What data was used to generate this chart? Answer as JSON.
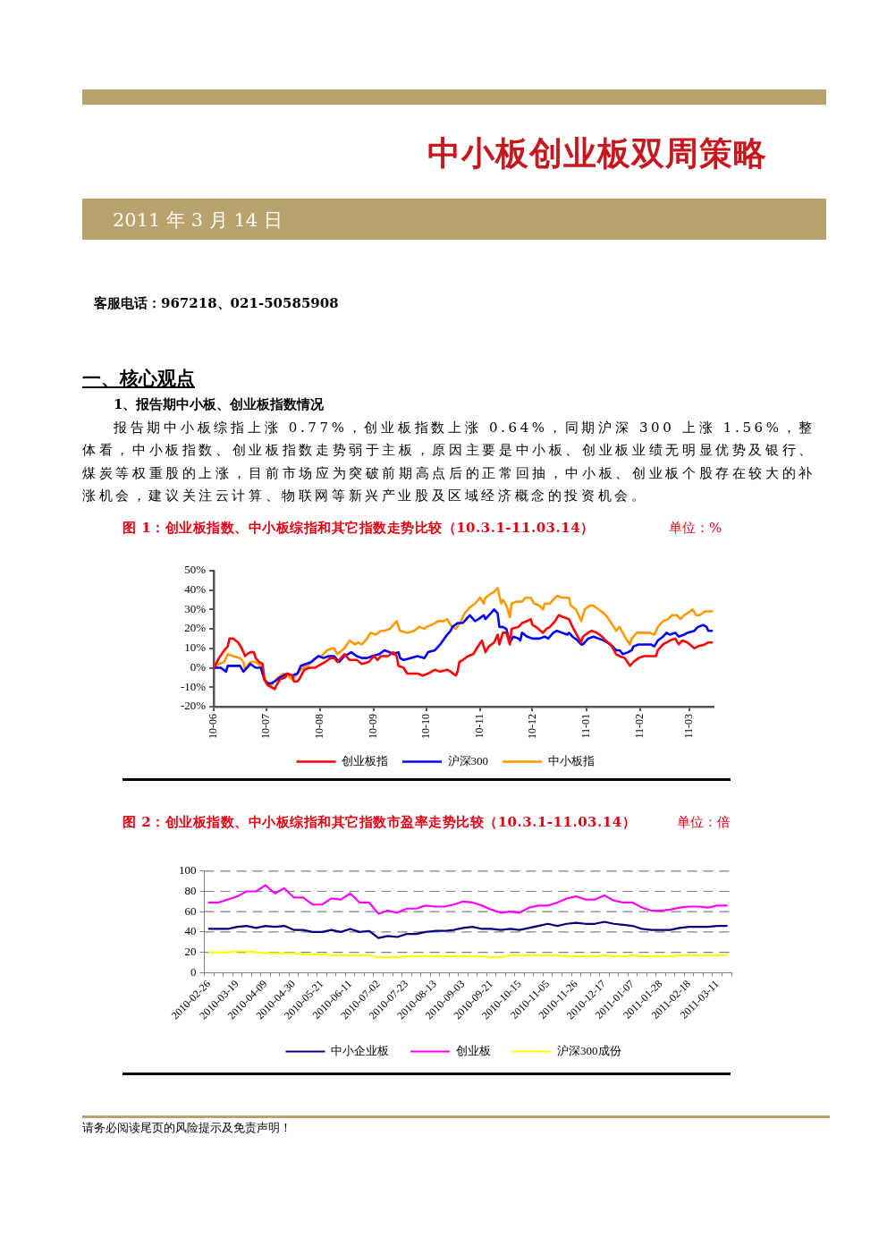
{
  "chart_data": [
    {
      "type": "line",
      "title": "图 1：创业板指数、中小板综指和其它指数走势比较（10.3.1-11.03.14）",
      "subtitle": "单位：%",
      "annotations": [
        "中小板创业板双周策略",
        "2011 年 3 月 14 日",
        "客服电话：967218、021-50585908",
        "一、核心观点",
        "1、报告期中小板、创业板指数情况",
        "报告期中小板综指上涨 0.77%，创业板指数上涨 0.64%，同期沪深 300 上涨 1.56%，整体看，中小板指数、创业板指数走势弱于主板，原因主要是中小板、创业板业绩无明显优势及银行、煤炭等权重股的上涨，目前市场应为突破前期高点后的正常回抽，中小板、创业板个股存在较大的补涨机会，建议关注云计算、物联网等新兴产业股及区域经济概念的投资机会。"
      ],
      "xlim": [
        "2010-06-01",
        "2011-03-15"
      ],
      "xticks": [
        {
          "value": "2010-06",
          "label": "10-06"
        },
        {
          "value": "2010-07",
          "label": "10-07"
        },
        {
          "value": "2010-08",
          "label": "10-08"
        },
        {
          "value": "2010-09",
          "label": "10-09"
        },
        {
          "value": "2010-10",
          "label": "10-10"
        },
        {
          "value": "2010-11",
          "label": "10-11"
        },
        {
          "value": "2010-12",
          "label": "10-12"
        },
        {
          "value": "2011-01",
          "label": "11-01"
        },
        {
          "value": "2011-02",
          "label": "11-02"
        },
        {
          "value": "2011-03",
          "label": "11-03"
        }
      ],
      "ylim": [
        -20,
        50
      ],
      "yticks": [
        {
          "value": -20,
          "label": "-20%"
        },
        {
          "value": -10,
          "label": "-10%"
        },
        {
          "value": 0,
          "label": "0%"
        },
        {
          "value": 10,
          "label": "10%"
        },
        {
          "value": 20,
          "label": "20%"
        },
        {
          "value": 30,
          "label": "30%"
        },
        {
          "value": 40,
          "label": "40%"
        },
        {
          "value": 50,
          "label": "50%"
        }
      ],
      "legend": "bottom",
      "series": [
        {
          "name": "创业板指",
          "color": "#ff0000",
          "x": [
            "2010-06-01",
            "2010-06-04",
            "2010-06-07",
            "2010-06-09",
            "2010-06-10",
            "2010-06-12",
            "2010-06-15",
            "2010-06-17",
            "2010-06-19",
            "2010-06-20",
            "2010-06-22",
            "2010-06-24",
            "2010-06-25",
            "2010-06-27",
            "2010-06-29",
            "2010-06-30",
            "2010-07-02",
            "2010-07-04",
            "2010-07-06",
            "2010-07-07",
            "2010-07-09",
            "2010-07-12",
            "2010-07-13",
            "2010-07-16",
            "2010-07-17",
            "2010-07-19",
            "2010-07-20",
            "2010-07-23",
            "2010-07-26",
            "2010-07-29",
            "2010-08-02",
            "2010-08-04",
            "2010-08-07",
            "2010-08-09",
            "2010-08-11",
            "2010-08-13",
            "2010-08-15",
            "2010-08-18",
            "2010-08-22",
            "2010-08-25",
            "2010-08-29",
            "2010-09-01",
            "2010-09-03",
            "2010-09-05",
            "2010-09-09",
            "2010-09-12",
            "2010-09-14",
            "2010-09-15",
            "2010-09-18",
            "2010-09-20",
            "2010-09-23",
            "2010-09-26",
            "2010-09-29",
            "2010-10-02",
            "2010-10-06",
            "2010-10-09",
            "2010-10-13",
            "2010-10-15",
            "2010-10-18",
            "2010-10-19",
            "2010-10-20",
            "2010-10-22",
            "2010-10-25",
            "2010-10-28",
            "2010-10-30",
            "2010-11-02",
            "2010-11-04",
            "2010-11-06",
            "2010-11-09",
            "2010-11-11",
            "2010-11-12",
            "2010-11-14",
            "2010-11-16",
            "2010-11-18",
            "2010-11-19",
            "2010-11-23",
            "2010-11-25",
            "2010-11-28",
            "2010-11-30",
            "2010-12-01",
            "2010-12-03",
            "2010-12-07",
            "2010-12-09",
            "2010-12-11",
            "2010-12-14",
            "2010-12-16",
            "2010-12-19",
            "2010-12-22",
            "2010-12-24",
            "2010-12-27",
            "2010-12-29",
            "2010-12-30",
            "2011-01-02",
            "2011-01-04",
            "2011-01-07",
            "2011-01-10",
            "2011-01-12",
            "2011-01-15",
            "2011-01-18",
            "2011-01-20",
            "2011-01-23",
            "2011-01-26",
            "2011-01-28",
            "2011-01-31",
            "2011-02-03",
            "2011-02-07",
            "2011-02-10",
            "2011-02-11",
            "2011-02-14",
            "2011-02-18",
            "2011-02-21",
            "2011-02-23",
            "2011-02-25",
            "2011-02-28",
            "2011-03-04",
            "2011-03-06",
            "2011-03-10",
            "2011-03-12",
            "2011-03-14"
          ],
          "values": [
            0,
            5,
            9,
            11,
            15,
            15,
            13,
            10,
            6,
            7,
            8,
            8,
            5,
            3,
            2,
            -6,
            -9,
            -10,
            -11,
            -9,
            -6,
            -5,
            -3,
            -4,
            -7,
            -7,
            -6,
            -1,
            0,
            0,
            2,
            3,
            5,
            5,
            3,
            5,
            7,
            4,
            4,
            2,
            3,
            6,
            4,
            6,
            6,
            8,
            6,
            1,
            0,
            -3,
            -3,
            -3,
            -4,
            -3,
            -1,
            -2,
            -1,
            -2,
            -4,
            -2,
            3,
            4,
            6,
            7,
            10,
            14,
            8,
            11,
            13,
            17,
            12,
            18,
            18,
            12,
            20,
            21,
            23,
            24,
            25,
            22,
            21,
            18,
            20,
            21,
            24,
            27,
            26,
            25,
            21,
            16,
            13,
            16,
            18,
            19,
            18,
            16,
            14,
            12,
            7,
            6,
            5,
            1,
            3,
            5,
            6,
            6,
            6,
            9,
            12,
            14,
            15,
            12,
            14,
            13,
            10,
            11,
            12,
            13,
            13
          ]
        },
        {
          "name": "沪深300",
          "color": "#0000ff",
          "x": [
            "2010-06-01",
            "2010-06-05",
            "2010-06-08",
            "2010-06-09",
            "2010-06-12",
            "2010-06-16",
            "2010-06-18",
            "2010-06-20",
            "2010-06-22",
            "2010-06-25",
            "2010-06-28",
            "2010-06-30",
            "2010-07-02",
            "2010-07-04",
            "2010-07-06",
            "2010-07-09",
            "2010-07-13",
            "2010-07-16",
            "2010-07-19",
            "2010-07-21",
            "2010-07-24",
            "2010-07-27",
            "2010-07-31",
            "2010-08-03",
            "2010-08-06",
            "2010-08-09",
            "2010-08-12",
            "2010-08-15",
            "2010-08-17",
            "2010-08-19",
            "2010-08-22",
            "2010-08-25",
            "2010-08-28",
            "2010-08-31",
            "2010-09-04",
            "2010-09-07",
            "2010-09-10",
            "2010-09-12",
            "2010-09-15",
            "2010-09-16",
            "2010-09-18",
            "2010-09-22",
            "2010-09-26",
            "2010-09-30",
            "2010-10-02",
            "2010-10-06",
            "2010-10-09",
            "2010-10-13",
            "2010-10-15",
            "2010-10-16",
            "2010-10-19",
            "2010-10-22",
            "2010-10-24",
            "2010-10-26",
            "2010-10-29",
            "2010-10-31",
            "2010-11-03",
            "2010-11-04",
            "2010-11-07",
            "2010-11-09",
            "2010-11-11",
            "2010-11-12",
            "2010-11-14",
            "2010-11-16",
            "2010-11-18",
            "2010-11-20",
            "2010-11-23",
            "2010-11-24",
            "2010-11-25",
            "2010-11-28",
            "2010-12-01",
            "2010-12-02",
            "2010-12-05",
            "2010-12-08",
            "2010-12-10",
            "2010-12-13",
            "2010-12-15",
            "2010-12-18",
            "2010-12-21",
            "2010-12-22",
            "2010-12-24",
            "2010-12-27",
            "2010-12-29",
            "2010-12-30",
            "2011-01-02",
            "2011-01-05",
            "2011-01-08",
            "2011-01-11",
            "2011-01-13",
            "2011-01-16",
            "2011-01-18",
            "2011-01-20",
            "2011-01-22",
            "2011-01-25",
            "2011-01-27",
            "2011-01-28",
            "2011-01-31",
            "2011-02-03",
            "2011-02-07",
            "2011-02-09",
            "2011-02-11",
            "2011-02-14",
            "2011-02-16",
            "2011-02-18",
            "2011-02-21",
            "2011-02-23",
            "2011-02-26",
            "2011-02-28",
            "2011-03-04",
            "2011-03-06",
            "2011-03-09",
            "2011-03-11",
            "2011-03-12",
            "2011-03-14"
          ],
          "values": [
            0,
            0,
            -2,
            1,
            1,
            1,
            -2,
            0,
            2,
            0,
            0,
            -6,
            -8,
            -8,
            -7,
            -5,
            -3,
            -4,
            -3,
            1,
            2,
            3,
            6,
            5,
            6,
            6,
            3,
            6,
            7,
            8,
            6,
            5,
            5,
            6,
            7,
            9,
            8,
            7,
            8,
            5,
            4,
            5,
            6,
            5,
            8,
            9,
            12,
            17,
            19,
            21,
            23,
            23,
            25,
            27,
            24,
            25,
            27,
            25,
            28,
            30,
            28,
            21,
            21,
            20,
            13,
            16,
            15,
            14,
            18,
            16,
            15,
            15,
            15,
            16,
            15,
            18,
            19,
            18,
            17,
            18,
            16,
            14,
            12,
            12,
            15,
            16,
            15,
            14,
            13,
            11,
            9,
            9,
            7,
            8,
            9,
            11,
            12,
            12,
            12,
            11,
            14,
            16,
            18,
            17,
            18,
            16,
            17,
            18,
            19,
            21,
            22,
            21,
            19,
            19
          ]
        },
        {
          "name": "中小板指",
          "color": "#ff9900",
          "x": [
            "2010-06-01",
            "2010-06-04",
            "2010-06-07",
            "2010-06-09",
            "2010-06-12",
            "2010-06-16",
            "2010-06-18",
            "2010-06-19",
            "2010-06-21",
            "2010-06-22",
            "2010-06-25",
            "2010-06-28",
            "2010-06-29",
            "2010-07-01",
            "2010-07-04",
            "2010-07-06",
            "2010-07-08",
            "2010-07-11",
            "2010-07-13",
            "2010-07-16",
            "2010-07-19",
            "2010-07-22",
            "2010-07-25",
            "2010-07-28",
            "2010-07-31",
            "2010-08-02",
            "2010-08-05",
            "2010-08-08",
            "2010-08-09",
            "2010-08-11",
            "2010-08-15",
            "2010-08-18",
            "2010-08-21",
            "2010-08-23",
            "2010-08-25",
            "2010-08-28",
            "2010-08-30",
            "2010-09-02",
            "2010-09-05",
            "2010-09-07",
            "2010-09-10",
            "2010-09-12",
            "2010-09-14",
            "2010-09-16",
            "2010-09-20",
            "2010-09-24",
            "2010-09-27",
            "2010-09-30",
            "2010-10-01",
            "2010-10-04",
            "2010-10-08",
            "2010-10-11",
            "2010-10-13",
            "2010-10-15",
            "2010-10-18",
            "2010-10-21",
            "2010-10-23",
            "2010-10-26",
            "2010-10-29",
            "2010-11-01",
            "2010-11-03",
            "2010-11-04",
            "2010-11-07",
            "2010-11-09",
            "2010-11-11",
            "2010-11-13",
            "2010-11-14",
            "2010-11-16",
            "2010-11-18",
            "2010-11-19",
            "2010-11-22",
            "2010-11-25",
            "2010-11-27",
            "2010-11-30",
            "2010-12-02",
            "2010-12-05",
            "2010-12-07",
            "2010-12-08",
            "2010-12-11",
            "2010-12-14",
            "2010-12-15",
            "2010-12-18",
            "2010-12-22",
            "2010-12-23",
            "2010-12-26",
            "2010-12-29",
            "2010-12-31",
            "2011-01-03",
            "2011-01-05",
            "2011-01-08",
            "2011-01-11",
            "2011-01-13",
            "2011-01-16",
            "2011-01-18",
            "2011-01-20",
            "2011-01-23",
            "2011-01-26",
            "2011-01-27",
            "2011-01-30",
            "2011-02-02",
            "2011-02-06",
            "2011-02-09",
            "2011-02-11",
            "2011-02-14",
            "2011-02-17",
            "2011-02-19",
            "2011-02-22",
            "2011-02-24",
            "2011-02-26",
            "2011-02-28",
            "2011-03-03",
            "2011-03-05",
            "2011-03-07",
            "2011-03-10",
            "2011-03-12",
            "2011-03-14"
          ],
          "values": [
            0,
            2,
            3,
            7,
            6,
            5,
            3,
            -1,
            2,
            3,
            3,
            1,
            -2,
            -8,
            -9,
            -7,
            -5,
            -3,
            -4,
            -6,
            -3,
            0,
            1,
            4,
            6,
            6,
            9,
            10,
            10,
            7,
            10,
            14,
            12,
            13,
            12,
            15,
            18,
            17,
            19,
            19,
            20,
            22,
            24,
            19,
            18,
            19,
            21,
            20,
            21,
            22,
            24,
            24,
            25,
            22,
            20,
            24,
            28,
            31,
            33,
            36,
            33,
            36,
            38,
            39,
            41,
            33,
            35,
            32,
            26,
            33,
            34,
            34,
            36,
            36,
            33,
            32,
            30,
            33,
            33,
            36,
            37,
            36,
            36,
            32,
            30,
            24,
            30,
            32,
            32,
            30,
            28,
            26,
            22,
            19,
            21,
            16,
            12,
            15,
            18,
            18,
            18,
            17,
            21,
            24,
            25,
            27,
            27,
            25,
            27,
            28,
            30,
            27,
            27,
            29,
            29,
            29
          ]
        }
      ]
    },
    {
      "type": "line",
      "title": "图 2：创业板指数、中小板综指和其它指数市盈率走势比较（10.3.1-11.03.14）",
      "subtitle": "单位：倍",
      "annotations": [
        "请务必阅读尾页的风险提示及免责声明！"
      ],
      "categories": [
        "2010-02-26",
        null,
        null,
        "2010-03-19",
        null,
        null,
        "2010-04-09",
        null,
        null,
        "2010-04-30",
        null,
        null,
        "2010-05-21",
        null,
        null,
        "2010-06-11",
        null,
        null,
        "2010-07-02",
        null,
        null,
        "2010-07-23",
        null,
        null,
        "2010-08-13",
        null,
        null,
        "2010-09-03",
        null,
        null,
        "2010-09-21",
        null,
        null,
        "2010-10-15",
        null,
        null,
        "2010-11-05",
        null,
        null,
        "2010-11-26",
        null,
        null,
        "2010-12-17",
        null,
        null,
        "2011-01-07",
        null,
        null,
        "2011-01-28",
        null,
        null,
        "2011-02-18",
        null,
        null,
        "2011-03-11",
        null
      ],
      "ylim": [
        0,
        100
      ],
      "yticks": [
        0,
        20,
        40,
        60,
        80,
        100
      ],
      "grid": "y",
      "legend": "bottom",
      "series": [
        {
          "name": "中小企业板",
          "color": "#000080",
          "values": [
            43,
            43,
            43,
            45,
            46,
            44,
            46,
            45,
            46,
            42,
            42,
            40,
            40,
            42,
            40,
            43,
            40,
            41,
            34,
            36,
            35,
            38,
            38,
            40,
            41,
            41,
            42,
            44,
            45,
            43,
            43,
            42,
            43,
            42,
            44,
            46,
            48,
            46,
            48,
            49,
            48,
            48,
            50,
            48,
            47,
            46,
            43,
            42,
            42,
            42,
            44,
            45,
            45,
            45,
            46,
            46
          ]
        },
        {
          "name": "创业板",
          "color": "#ff00ff",
          "values": [
            69,
            69,
            72,
            75,
            80,
            80,
            86,
            78,
            83,
            74,
            74,
            67,
            67,
            73,
            72,
            78,
            69,
            69,
            58,
            61,
            59,
            63,
            63,
            66,
            65,
            65,
            67,
            70,
            69,
            66,
            62,
            59,
            60,
            59,
            64,
            66,
            66,
            69,
            73,
            75,
            72,
            72,
            76,
            71,
            69,
            69,
            64,
            61,
            61,
            62,
            64,
            65,
            65,
            64,
            66,
            66
          ]
        },
        {
          "name": "沪深300成份",
          "color": "#ffff00",
          "values": [
            20,
            20,
            20,
            21,
            21,
            20,
            19,
            19,
            19,
            19,
            18,
            18,
            18,
            17,
            17,
            17,
            17,
            17,
            15,
            15,
            15,
            16,
            16,
            16,
            16,
            16,
            16,
            16,
            16,
            16,
            15,
            15,
            17,
            17,
            17,
            17,
            17,
            17,
            16,
            16,
            16,
            16,
            17,
            16,
            16,
            17,
            16,
            16,
            16,
            16,
            17,
            17,
            17,
            17,
            17,
            17
          ]
        }
      ]
    }
  ]
}
